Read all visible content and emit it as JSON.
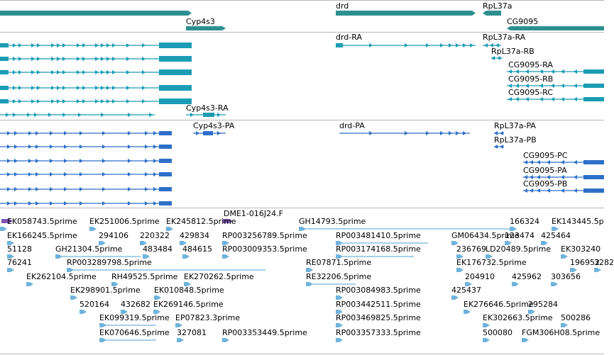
{
  "colors": {
    "gene": "#2f8f8f",
    "transcript": "#1a9cb4",
    "protein": "#2e6fc9",
    "clone": "#7f55b5",
    "est": "#6fb3dc",
    "divider": "#b8b8b8"
  },
  "tracks": {
    "genes": {
      "labels": [
        "Cyp4s3",
        "drd",
        "RpL37a",
        "CG9095"
      ]
    },
    "transcripts": {
      "labels": [
        "drd-RA",
        "RpL37a-RA",
        "RpL37a-RB",
        "CG9095-RA",
        "CG9095-RB",
        "CG9095-RC",
        "Cyp4s3-RA"
      ]
    },
    "proteins": {
      "labels": [
        "Cyp4s3-PA",
        "drd-PA",
        "RpL37a-PA",
        "RpL37a-PB",
        "CG9095-PC",
        "CG9095-PA",
        "CG9095-PB"
      ]
    },
    "clones": {
      "labels": [
        "DME1-016J24.F"
      ]
    },
    "ests": {
      "labels": [
        "EK058743.5prime",
        "EK251006.5prime",
        "EK245812.5prime",
        "GH14793.5prime",
        "166324",
        "EK143445.5p",
        "EK166245.5prime",
        "294106",
        "220322",
        "429834",
        "RP003256789.5prime",
        "RP003481410.5prime",
        "GM06434.5prime",
        "123474",
        "425464",
        "51128",
        "GH21304.5prime",
        "483484",
        "484615",
        "RP003009353.5prime",
        "RP003174168.5prime",
        "236769",
        "LD20489.5prime",
        "EK303240",
        "76241",
        "RP003289798.5prime",
        "RE07871.5prime",
        "EK176732.5prime",
        "196952",
        "3282",
        "EK262104.5prime",
        "RH49525.5prime",
        "EK270262.5prime",
        "RE32206.5prime",
        "204910",
        "425962",
        "303656",
        "EK298901.5prime",
        "EK010848.5prime",
        "RP003084983.5prime",
        "425437",
        "520164",
        "432682",
        "EK269146.5prime",
        "RP003442511.5prime",
        "EK276646.5prime",
        "295284",
        "EK099319.5prime",
        "EP07823.3prime",
        "RP003469825.5prime",
        "EK302663.5prime",
        "500286",
        "EK070646.5prime",
        "327081",
        "RP003353449.5prime",
        "RP003357333.5prime",
        "500080",
        "FGM306H08.5prime"
      ]
    }
  }
}
